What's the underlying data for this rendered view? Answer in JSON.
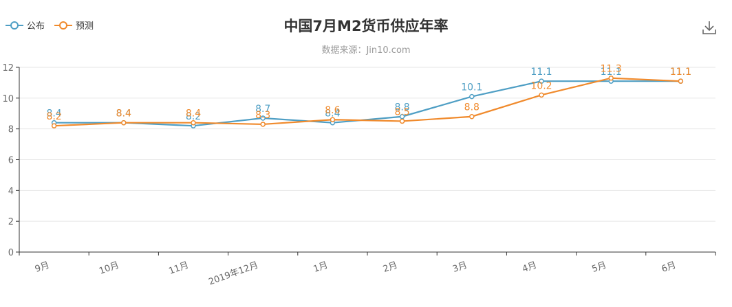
{
  "chart_data": {
    "type": "line",
    "title": "中国7月M2货币供应年率",
    "subtitle": "数据来源：Jin10.com",
    "categories": [
      "9月",
      "10月",
      "11月",
      "2019年12月",
      "1月",
      "2月",
      "3月",
      "4月",
      "5月",
      "6月"
    ],
    "series": [
      {
        "name": "公布",
        "color": "#4e9ec4",
        "values": [
          8.4,
          8.4,
          8.2,
          8.7,
          8.4,
          8.8,
          10.1,
          11.1,
          11.1,
          11.1
        ]
      },
      {
        "name": "预测",
        "color": "#f08a2c",
        "values": [
          8.2,
          8.4,
          8.4,
          8.3,
          8.6,
          8.5,
          8.8,
          10.2,
          11.3,
          11.1
        ]
      }
    ],
    "ylim": [
      0,
      12
    ],
    "yticks": [
      0,
      2,
      4,
      6,
      8,
      10,
      12
    ],
    "grid": true,
    "legend_position": "top-left"
  },
  "toolbar": {
    "download_icon": "download-icon"
  }
}
